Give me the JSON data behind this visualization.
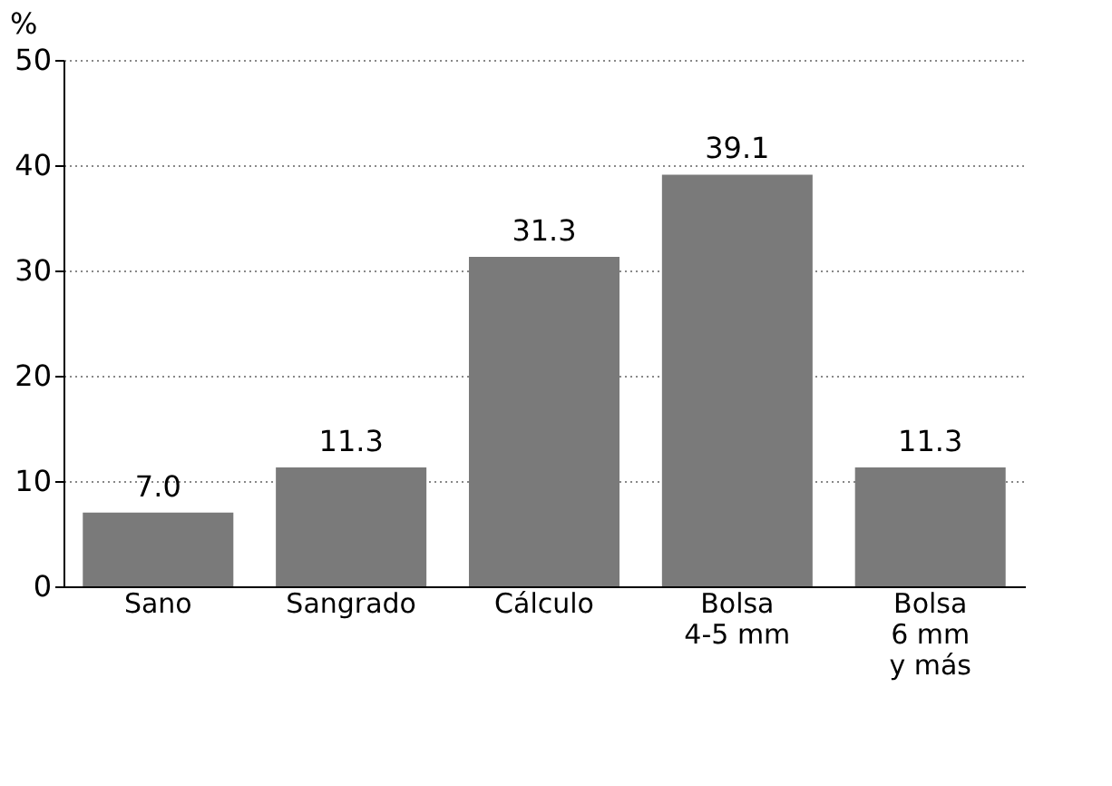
{
  "chart_data": {
    "type": "bar",
    "ylabel": "%",
    "categories": [
      "Sano",
      "Sangrado",
      "Cálculo",
      "Bolsa\n4-5 mm",
      "Bolsa\n6 mm\ny más"
    ],
    "values": [
      7.0,
      11.3,
      31.3,
      39.1,
      11.3
    ],
    "color": "#7a7a7a",
    "ylim": [
      0,
      50
    ],
    "yticks": [
      0,
      10,
      20,
      30,
      40,
      50
    ],
    "grid": "y",
    "value_labels": [
      "7.0",
      "11.3",
      "31.3",
      "39.1",
      "11.3"
    ]
  }
}
